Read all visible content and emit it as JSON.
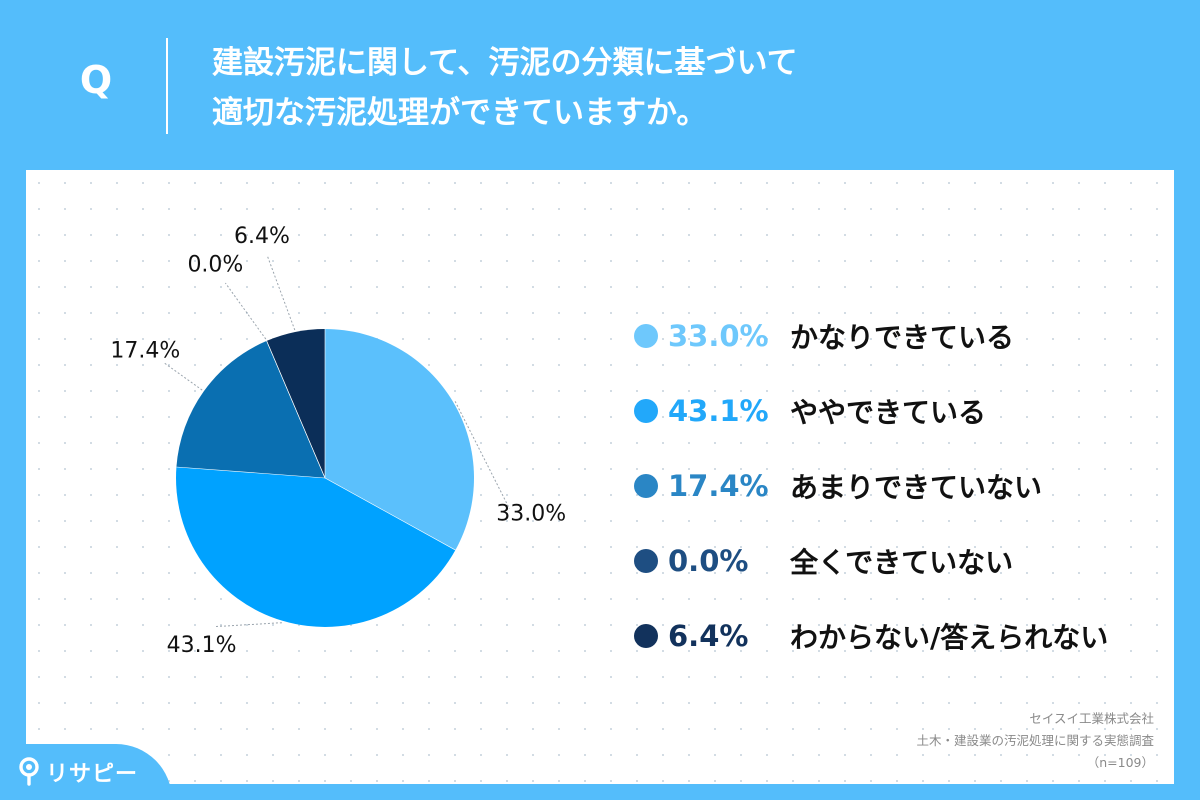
{
  "header": {
    "q_label": "Q",
    "question_line1": "建設汚泥に関して、汚泥の分類に基づいて",
    "question_line2": "適切な汚泥処理ができていますか。"
  },
  "chart_data": {
    "type": "pie",
    "slices": [
      {
        "label": "かなりできている",
        "value": 33.0,
        "display": "33.0%",
        "color": "#5bc0fc"
      },
      {
        "label": "ややできている",
        "value": 43.1,
        "display": "43.1%",
        "color": "#00a2ff"
      },
      {
        "label": "あまりできていない",
        "value": 17.4,
        "display": "17.4%",
        "color": "#0a6fb1"
      },
      {
        "label": "全くできていない",
        "value": 0.0,
        "display": "0.0%",
        "color": "#194a80"
      },
      {
        "label": "わからない/答えられない",
        "value": 6.4,
        "display": "6.4%",
        "color": "#0b2e58"
      }
    ],
    "legend_text_colors": [
      "#6ec8fc",
      "#22a8fa",
      "#2a86c5",
      "#1e4e82",
      "#12325c"
    ],
    "start_angle": "12 o'clock",
    "direction": "clockwise",
    "legend_position": "right"
  },
  "source": {
    "company": "セイスイ工業株式会社",
    "survey": "土木・建設業の汚泥処理に関する実態調査",
    "sample": "（n=109）"
  },
  "brand": {
    "name": "リサピー",
    "icon": "location-pin-icon"
  }
}
